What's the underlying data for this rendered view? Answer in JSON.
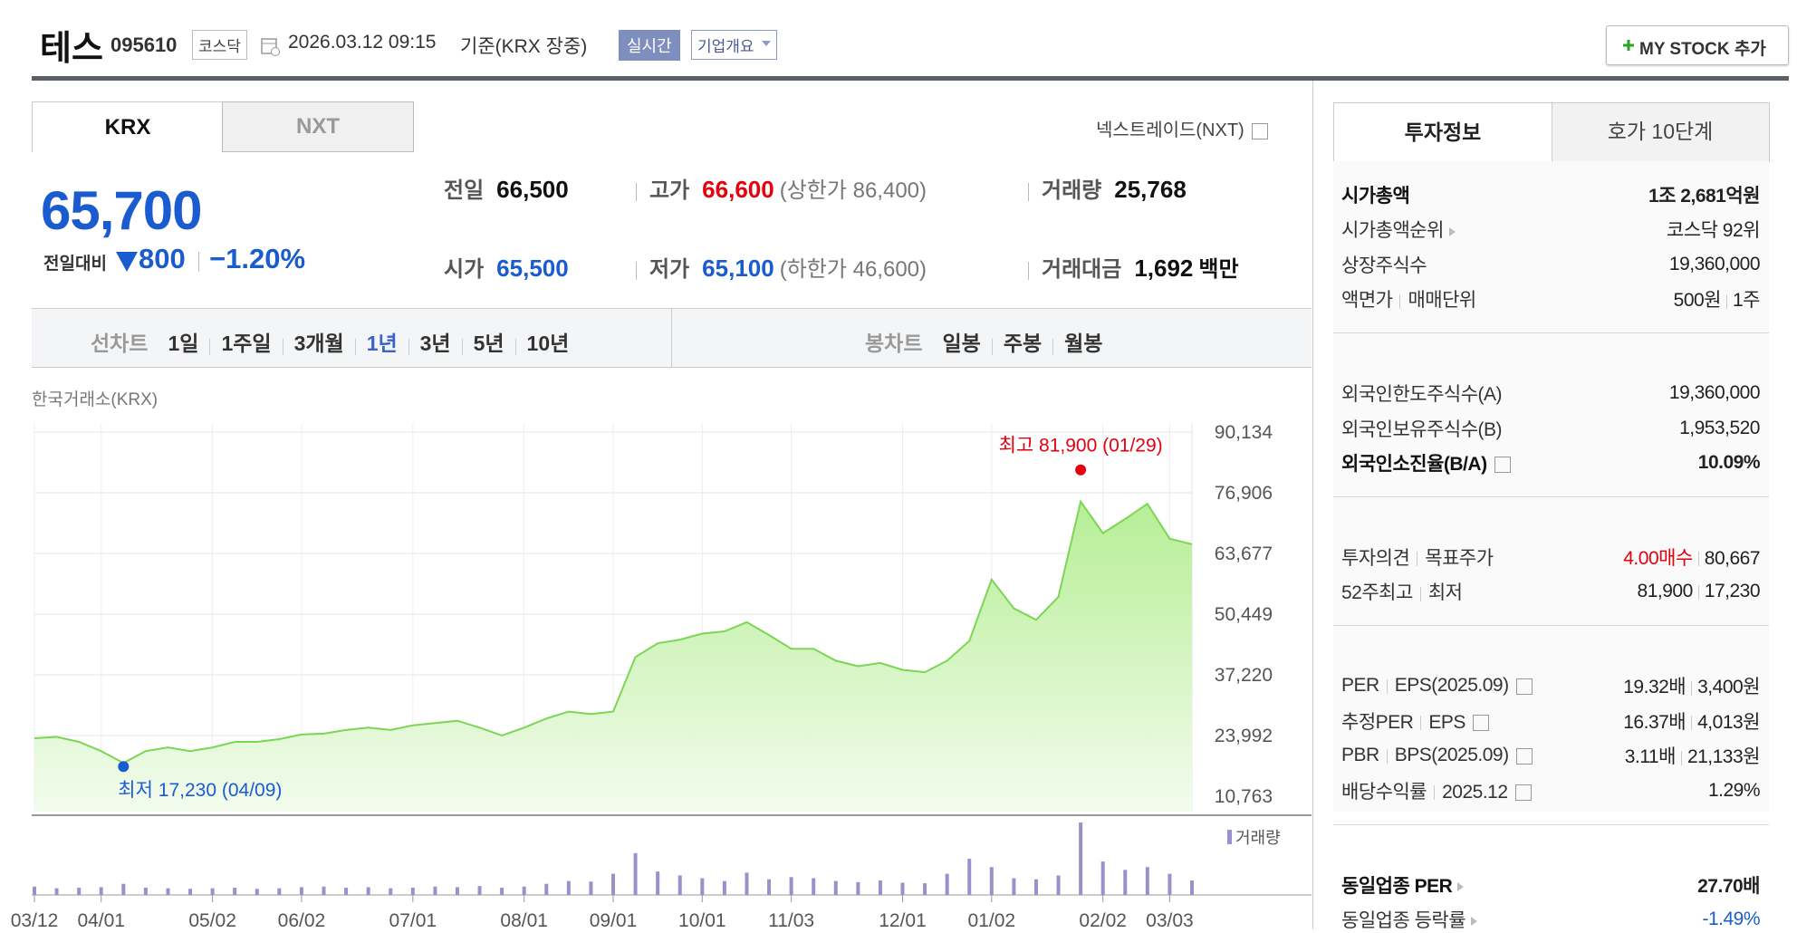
{
  "header": {
    "name": "테스",
    "code": "095610",
    "market": "코스닥",
    "datetime": "2026.03.12 09:15",
    "basis": "기준(KRX 장중)",
    "realtime": "실시간",
    "company_info": "기업개요",
    "my_stock": "MY STOCK 추가"
  },
  "exchange_tabs": [
    "KRX",
    "NXT"
  ],
  "nxt_link": "넥스트레이드(NXT)",
  "quote": {
    "price": "65,700",
    "change_label": "전일대비",
    "change": "800",
    "change_rate": "−1.20%",
    "items": [
      {
        "label": "전일",
        "value": "66,500",
        "color": "#111111"
      },
      {
        "label": "고가",
        "value": "66,600",
        "color": "#e5000e",
        "note": "(상한가 86,400)"
      },
      {
        "label": "거래량",
        "value": "25,768",
        "color": "#111111"
      },
      {
        "label": "시가",
        "value": "65,500",
        "color": "#1a5ccf"
      },
      {
        "label": "저가",
        "value": "65,100",
        "color": "#1a5ccf",
        "note": "(하한가 46,600)"
      },
      {
        "label": "거래대금",
        "value": "1,692",
        "color": "#111111",
        "unit": "백만"
      }
    ]
  },
  "chart_tabs": {
    "line_label": "선차트",
    "line": [
      "1일",
      "1주일",
      "3개월",
      "1년",
      "3년",
      "5년",
      "10년"
    ],
    "line_selected": 3,
    "candle_label": "봉차트",
    "candle": [
      "일봉",
      "주봉",
      "월봉"
    ]
  },
  "chart_data": {
    "type": "line",
    "source": "한국거래소(KRX)",
    "color": "#7cd655",
    "categories": [
      "03/12",
      null,
      null,
      "04/01",
      null,
      null,
      null,
      null,
      "05/02",
      null,
      null,
      null,
      "06/02",
      null,
      null,
      null,
      null,
      "07/01",
      null,
      null,
      null,
      null,
      "08/01",
      null,
      null,
      null,
      "09/01",
      null,
      null,
      null,
      "10/01",
      null,
      null,
      null,
      "11/03",
      null,
      null,
      null,
      null,
      "12/01",
      null,
      null,
      null,
      "01/02",
      null,
      null,
      null,
      null,
      "02/02",
      null,
      null,
      "03/03",
      null
    ],
    "values": [
      23400,
      23700,
      22600,
      20600,
      18000,
      20600,
      21400,
      20600,
      21400,
      22600,
      22600,
      23200,
      24200,
      24400,
      25200,
      25700,
      25200,
      26200,
      26700,
      27200,
      25700,
      24000,
      25700,
      27700,
      29200,
      28700,
      29200,
      41100,
      44100,
      44900,
      46200,
      46700,
      48700,
      45900,
      42900,
      42900,
      40300,
      39100,
      39800,
      38300,
      37800,
      40300,
      44600,
      58000,
      51700,
      49200,
      54200,
      75000,
      68100,
      71200,
      74500,
      66900,
      65700
    ],
    "ylim": [
      10763,
      90134
    ],
    "yticks": [
      {
        "value": 10763,
        "label": "10,763"
      },
      {
        "value": 23992,
        "label": "23,992"
      },
      {
        "value": 37220,
        "label": "37,220"
      },
      {
        "value": 50449,
        "label": "50,449"
      },
      {
        "value": 63677,
        "label": "63,677"
      },
      {
        "value": 76906,
        "label": "76,906"
      },
      {
        "value": 90134,
        "label": "90,134"
      }
    ],
    "grid": true,
    "high": {
      "text": "최고 81,900 (01/29)",
      "value": 81900,
      "color": "#e5000e"
    },
    "low": {
      "text": "최저 17,230 (04/09)",
      "value": 17230,
      "color": "#1a5ccf"
    },
    "volume": {
      "name": "거래량",
      "color": "#9b90cc",
      "values": [
        150000,
        120000,
        130000,
        140000,
        200000,
        130000,
        120000,
        110000,
        120000,
        130000,
        110000,
        120000,
        140000,
        150000,
        130000,
        140000,
        120000,
        130000,
        150000,
        140000,
        160000,
        130000,
        150000,
        200000,
        250000,
        240000,
        380000,
        750000,
        420000,
        350000,
        300000,
        250000,
        400000,
        280000,
        320000,
        300000,
        250000,
        230000,
        260000,
        220000,
        210000,
        380000,
        650000,
        500000,
        300000,
        280000,
        350000,
        1300000,
        600000,
        450000,
        500000,
        380000,
        260000
      ]
    }
  },
  "right_panel": {
    "tabs": [
      "투자정보",
      "호가 10단계"
    ],
    "groups": [
      [
        {
          "label": [
            "시가총액"
          ],
          "value": [
            "1조 2,681억원"
          ],
          "bold": true
        },
        {
          "label": [
            "시가총액순위"
          ],
          "value": [
            "코스닥 92위"
          ],
          "arrow": true
        },
        {
          "label": [
            "상장주식수"
          ],
          "value": [
            "19,360,000"
          ]
        },
        {
          "label": [
            "액면가",
            "매매단위"
          ],
          "value": [
            "500원",
            "1주"
          ]
        }
      ],
      [
        {
          "label": [
            "외국인한도주식수(A)"
          ],
          "value": [
            "19,360,000"
          ]
        },
        {
          "label": [
            "외국인보유주식수(B)"
          ],
          "value": [
            "1,953,520"
          ]
        },
        {
          "label": [
            "외국인소진율(B/A)"
          ],
          "value": [
            "10.09%"
          ],
          "bold": true,
          "help": true
        }
      ],
      [
        {
          "label": [
            "투자의견",
            "목표주가"
          ],
          "value": [
            "4.00매수",
            "80,667"
          ],
          "color": "#e5000e"
        },
        {
          "label": [
            "52주최고",
            "최저"
          ],
          "value": [
            "81,900",
            "17,230"
          ]
        }
      ],
      [
        {
          "label": [
            "PER",
            "EPS(2025.09)"
          ],
          "value": [
            "19.32배",
            "3,400원"
          ],
          "help": true
        },
        {
          "label": [
            "추정PER",
            "EPS"
          ],
          "value": [
            "16.37배",
            "4,013원"
          ],
          "help": true
        },
        {
          "label": [
            "PBR",
            "BPS(2025.09)"
          ],
          "value": [
            "3.11배",
            "21,133원"
          ],
          "help": true
        },
        {
          "label": [
            "배당수익률",
            "2025.12"
          ],
          "value": [
            "1.29%"
          ],
          "help": true
        }
      ],
      [
        {
          "label": [
            "동일업종 PER"
          ],
          "value": [
            "27.70배"
          ],
          "bold": true,
          "arrow": true
        },
        {
          "label": [
            "동일업종 등락률"
          ],
          "value": [
            "-1.49%"
          ],
          "arrow": true,
          "color": "#1a5ccf"
        }
      ]
    ]
  }
}
